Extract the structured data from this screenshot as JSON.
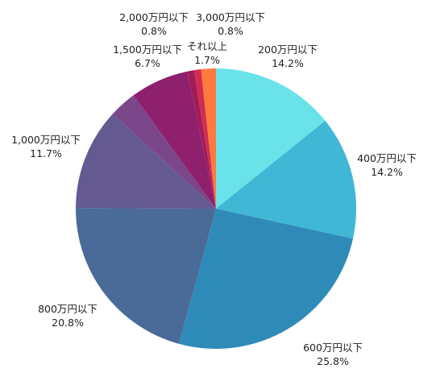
{
  "chart_data": {
    "type": "pie",
    "title": "",
    "start_angle_deg": 0,
    "direction": "clockwise",
    "slices": [
      {
        "name": "200万円以下",
        "value": 14.2,
        "value_label": "14.2%",
        "color": "#69E3E9"
      },
      {
        "name": "400万円以下",
        "value": 14.2,
        "value_label": "14.2%",
        "color": "#41B7D6"
      },
      {
        "name": "600万円以下",
        "value": 25.8,
        "value_label": "25.8%",
        "color": "#2E8BB8"
      },
      {
        "name": "800万円以下",
        "value": 20.8,
        "value_label": "20.8%",
        "color": "#4A6A98"
      },
      {
        "name": "1,000万円以下",
        "value": 11.7,
        "value_label": "11.7%",
        "color": "#645A91"
      },
      {
        "name": "",
        "value": 3.2,
        "value_label": "",
        "color": "#7B478A"
      },
      {
        "name": "1,500万円以下",
        "value": 6.7,
        "value_label": "6.7%",
        "color": "#8E206D"
      },
      {
        "name": "2,000万円以下",
        "value": 0.8,
        "value_label": "0.8%",
        "color": "#A01D5A"
      },
      {
        "name": "3,000万円以下",
        "value": 0.8,
        "value_label": "0.8%",
        "color": "#D12C51"
      },
      {
        "name": "それ以上",
        "value": 1.7,
        "value_label": "1.7%",
        "color": "#FF7A3D"
      }
    ]
  }
}
